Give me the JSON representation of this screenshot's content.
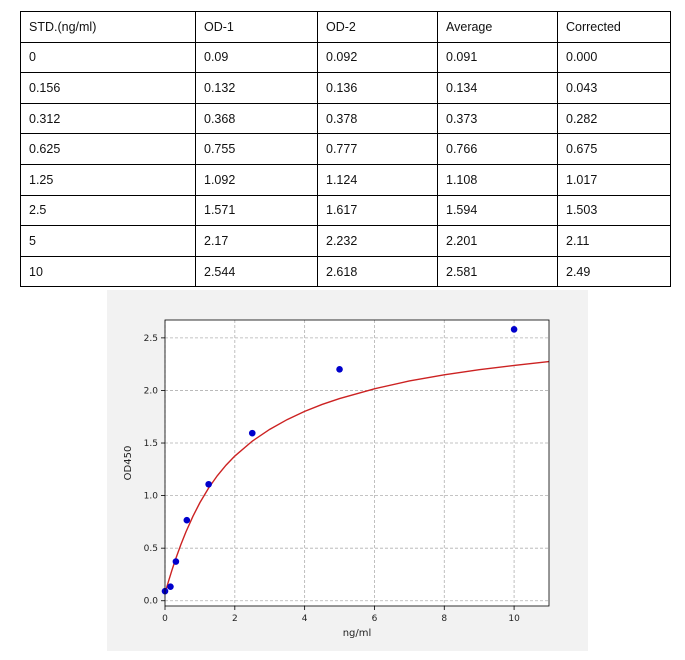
{
  "table": {
    "headers": [
      "STD.(ng/ml)",
      "OD-1",
      "OD-2",
      "Average",
      "Corrected"
    ],
    "rows": [
      [
        "0",
        "0.09",
        "0.092",
        "0.091",
        "0.000"
      ],
      [
        "0.156",
        "0.132",
        "0.136",
        "0.134",
        "0.043"
      ],
      [
        "0.312",
        "0.368",
        "0.378",
        "0.373",
        "0.282"
      ],
      [
        "0.625",
        "0.755",
        "0.777",
        "0.766",
        "0.675"
      ],
      [
        "1.25",
        "1.092",
        "1.124",
        "1.108",
        "1.017"
      ],
      [
        "2.5",
        "1.571",
        "1.617",
        "1.594",
        "1.503"
      ],
      [
        "5",
        "2.17",
        "2.232",
        "2.201",
        "2.11"
      ],
      [
        "10",
        "2.544",
        "2.618",
        "2.581",
        "2.49"
      ]
    ]
  },
  "chart_data": {
    "type": "scatter",
    "title": "",
    "xlabel": "ng/ml",
    "ylabel": "OD450",
    "xlim": [
      0,
      11
    ],
    "ylim": [
      -0.05,
      2.67
    ],
    "xticks": [
      0,
      2,
      4,
      6,
      8,
      10
    ],
    "yticks": [
      0.0,
      0.5,
      1.0,
      1.5,
      2.0,
      2.5
    ],
    "xtick_labels": [
      "0",
      "2",
      "4",
      "6",
      "8",
      "10"
    ],
    "ytick_labels": [
      "0.0",
      "0.5",
      "1.0",
      "1.5",
      "2.0",
      "2.5"
    ],
    "grid": true,
    "series": [
      {
        "kind": "points",
        "color": "#0000cc",
        "x": [
          0,
          0.156,
          0.312,
          0.625,
          1.25,
          2.5,
          5,
          10
        ],
        "y": [
          0.091,
          0.134,
          0.373,
          0.766,
          1.108,
          1.594,
          2.201,
          2.581
        ]
      },
      {
        "kind": "fit-curve",
        "color": "#cc2222",
        "x": [
          0.0,
          0.1,
          0.2,
          0.3,
          0.45,
          0.6,
          0.8,
          1.0,
          1.25,
          1.5,
          1.75,
          2.0,
          2.5,
          3.0,
          3.5,
          4.0,
          4.5,
          5.0,
          6.0,
          7.0,
          8.0,
          9.0,
          10.0,
          11.0
        ],
        "y": [
          0.07,
          0.185,
          0.292,
          0.392,
          0.53,
          0.655,
          0.803,
          0.933,
          1.072,
          1.19,
          1.29,
          1.376,
          1.518,
          1.63,
          1.723,
          1.801,
          1.867,
          1.923,
          2.016,
          2.09,
          2.149,
          2.197,
          2.238,
          2.275
        ]
      }
    ]
  }
}
